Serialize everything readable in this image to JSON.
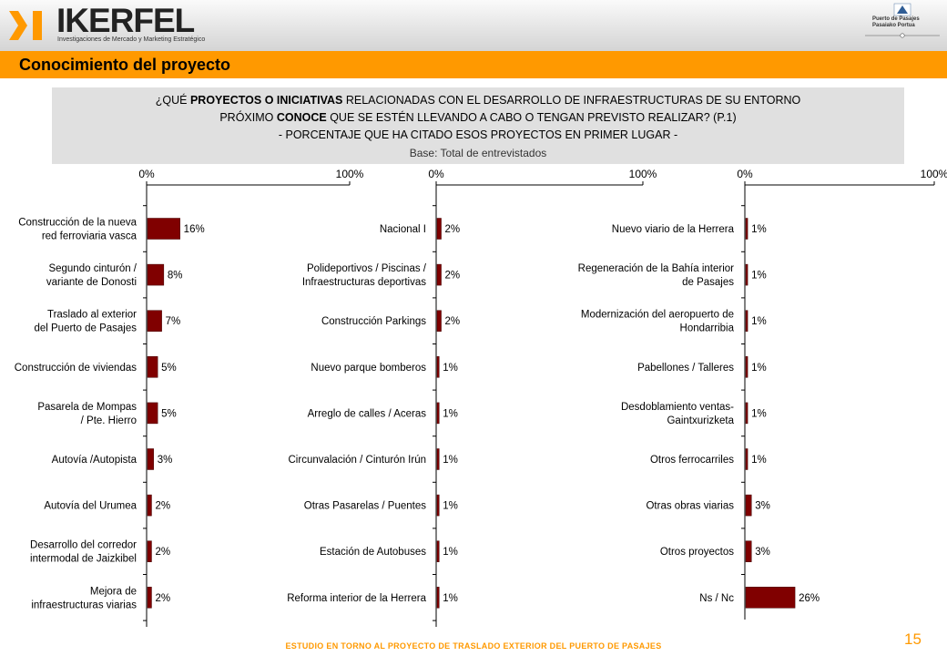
{
  "header": {
    "logo_text": "IKERFEL",
    "logo_tagline": "Investigaciones de Mercado y Marketing Estratégico",
    "port_logo_line1": "Puerto de Pasajes",
    "port_logo_line2": "Pasaiako Portua",
    "brand_color": "#ff9900"
  },
  "title": "Conocimiento del proyecto",
  "question": {
    "line1_prefix": "¿QUÉ ",
    "line1_bold": "PROYECTOS O INICIATIVAS",
    "line1_suffix": " RELACIONADAS CON EL DESARROLLO DE INFRAESTRUCTURAS DE SU ENTORNO",
    "line2_prefix": "PRÓXIMO ",
    "line2_bold": "CONOCE",
    "line2_suffix": " QUE SE ESTÉN LLEVANDO A CABO O TENGAN PREVISTO REALIZAR? (P.1)",
    "line3": "- PORCENTAJE QUE HA CITADO ESOS PROYECTOS EN PRIMER LUGAR -",
    "base": "Base: Total de entrevistados"
  },
  "footer": "ESTUDIO EN TORNO AL PROYECTO DE TRASLADO EXTERIOR DEL PUERTO DE PASAJES",
  "page_number": "15",
  "bar_color": "#800000",
  "chart_data": [
    {
      "type": "bar",
      "orientation": "horizontal",
      "xlim": [
        0,
        100
      ],
      "ticks": [
        "0%",
        "100%"
      ],
      "categories": [
        [
          "Construcción de la nueva",
          "red ferroviaria vasca"
        ],
        [
          "Segundo cinturón /",
          "variante de Donosti"
        ],
        [
          "Traslado al exterior",
          "del Puerto de Pasajes"
        ],
        [
          "Construcción de viviendas"
        ],
        [
          "Pasarela de Mompas",
          "/ Pte. Hierro"
        ],
        [
          "Autovía /Autopista"
        ],
        [
          "Autovía del Urumea"
        ],
        [
          "Desarrollo del corredor",
          "intermodal de Jaizkibel"
        ],
        [
          "Mejora de",
          "infraestructuras viarias"
        ]
      ],
      "values": [
        16,
        8,
        7,
        5,
        5,
        3,
        2,
        2,
        2
      ],
      "value_labels": [
        "16%",
        "8%",
        "7%",
        "5%",
        "5%",
        "3%",
        "2%",
        "2%",
        "2%"
      ]
    },
    {
      "type": "bar",
      "orientation": "horizontal",
      "xlim": [
        0,
        100
      ],
      "ticks": [
        "0%",
        "100%"
      ],
      "categories": [
        [
          "Nacional I"
        ],
        [
          "Polideportivos / Piscinas /",
          "Infraestructuras deportivas"
        ],
        [
          "Construcción Parkings"
        ],
        [
          "Nuevo parque bomberos"
        ],
        [
          "Arreglo de calles / Aceras"
        ],
        [
          "Circunvalación / Cinturón Irún"
        ],
        [
          "Otras Pasarelas / Puentes"
        ],
        [
          "Estación de Autobuses"
        ],
        [
          "Reforma interior de la Herrera"
        ]
      ],
      "values": [
        2,
        2,
        2,
        1,
        1,
        1,
        1,
        1,
        1
      ],
      "value_labels": [
        "2%",
        "2%",
        "2%",
        "1%",
        "1%",
        "1%",
        "1%",
        "1%",
        "1%"
      ]
    },
    {
      "type": "bar",
      "orientation": "horizontal",
      "xlim": [
        0,
        100
      ],
      "ticks": [
        "0%",
        "100%"
      ],
      "categories": [
        [
          "Nuevo viario de la Herrera"
        ],
        [
          "Regeneración de la Bahía interior",
          "de Pasajes"
        ],
        [
          "Modernización del aeropuerto de",
          "Hondarribia"
        ],
        [
          "Pabellones / Talleres"
        ],
        [
          "Desdoblamiento ventas-",
          "Gaintxurizketa"
        ],
        [
          "Otros ferrocarriles"
        ],
        [
          "Otras obras viarias"
        ],
        [
          "Otros proyectos"
        ],
        [
          "Ns / Nc"
        ]
      ],
      "values": [
        1,
        1,
        1,
        1,
        1,
        1,
        3,
        3,
        26
      ],
      "value_labels": [
        "1%",
        "1%",
        "1%",
        "1%",
        "1%",
        "1%",
        "3%",
        "3%",
        "26%"
      ]
    }
  ]
}
